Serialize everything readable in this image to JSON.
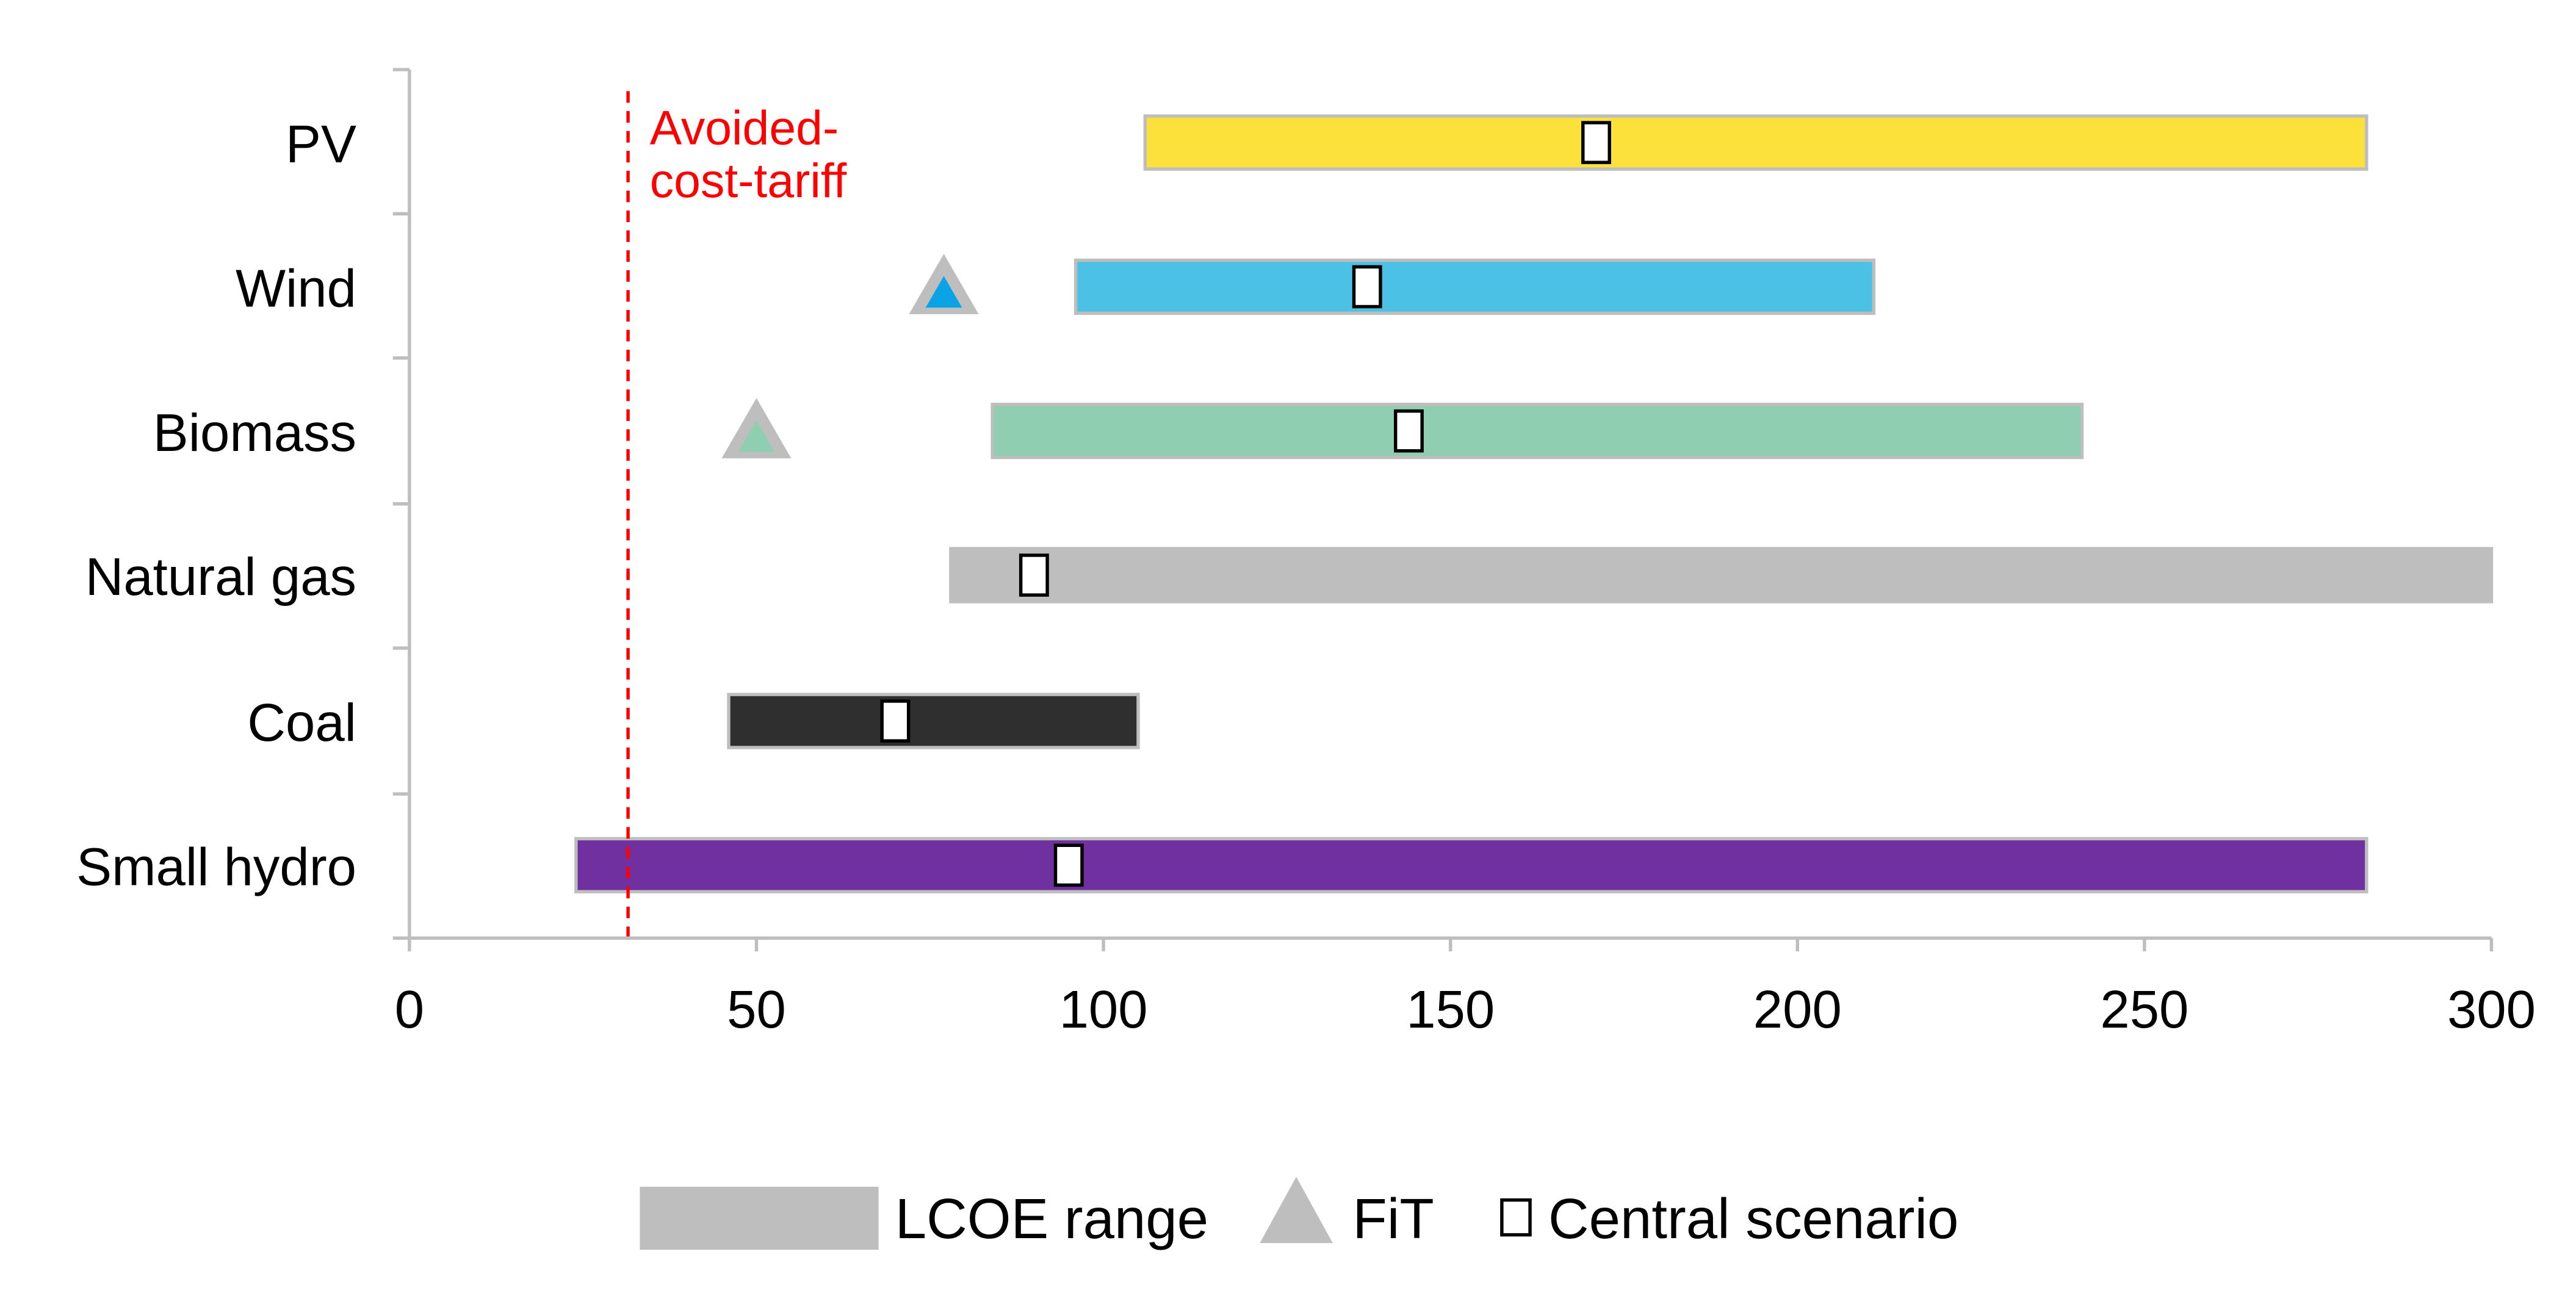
{
  "chart_data": {
    "type": "bar",
    "subtype": "floating-range-bar",
    "orientation": "horizontal",
    "title": "",
    "xlabel": "",
    "ylabel": "",
    "xlim": [
      0,
      300
    ],
    "x_ticks": [
      "0",
      "50",
      "100",
      "150",
      "200",
      "250",
      "300"
    ],
    "grid": false,
    "legend_position": "bottom",
    "categories": [
      "PV",
      "Wind",
      "Biomass",
      "Natural gas",
      "Coal",
      "Small hydro"
    ],
    "series": [
      {
        "name": "LCOE range",
        "kind": "range",
        "ranges": [
          [
            106,
            282
          ],
          [
            96,
            211
          ],
          [
            84,
            241
          ],
          [
            78,
            300
          ],
          [
            46,
            105
          ],
          [
            24,
            282
          ]
        ],
        "colors": [
          "#FDE13B",
          "#4BC1E5",
          "#8FCEB1",
          "#BFBEBE",
          "#2F2F2F",
          "#70309F"
        ]
      },
      {
        "name": "FiT",
        "kind": "marker",
        "values": [
          null,
          77,
          50,
          null,
          null,
          null
        ],
        "colors": [
          null,
          "#0AA3E6",
          "#8FCEB1",
          null,
          null,
          null
        ]
      },
      {
        "name": "Central scenario",
        "kind": "marker",
        "values": [
          171,
          138,
          144,
          90,
          70,
          95
        ]
      }
    ],
    "reference_lines": [
      {
        "label": "Avoided-cost-tariff",
        "label_lines": [
          "Avoided-",
          "cost-tariff"
        ],
        "value": 31.5,
        "color": "#FF0000"
      }
    ],
    "legend": [
      {
        "label": "LCOE range",
        "symbol": "bar",
        "color": "#BFBEBE"
      },
      {
        "label": "FiT",
        "symbol": "triangle",
        "color": "#BFBEBE"
      },
      {
        "label": "Central scenario",
        "symbol": "square",
        "color": "#FFFFFF"
      }
    ],
    "colors": {
      "axis": "#BFBEBE",
      "text": "#000000",
      "marker_outline": "#BFBEBE",
      "square_outline": "#000000"
    }
  }
}
